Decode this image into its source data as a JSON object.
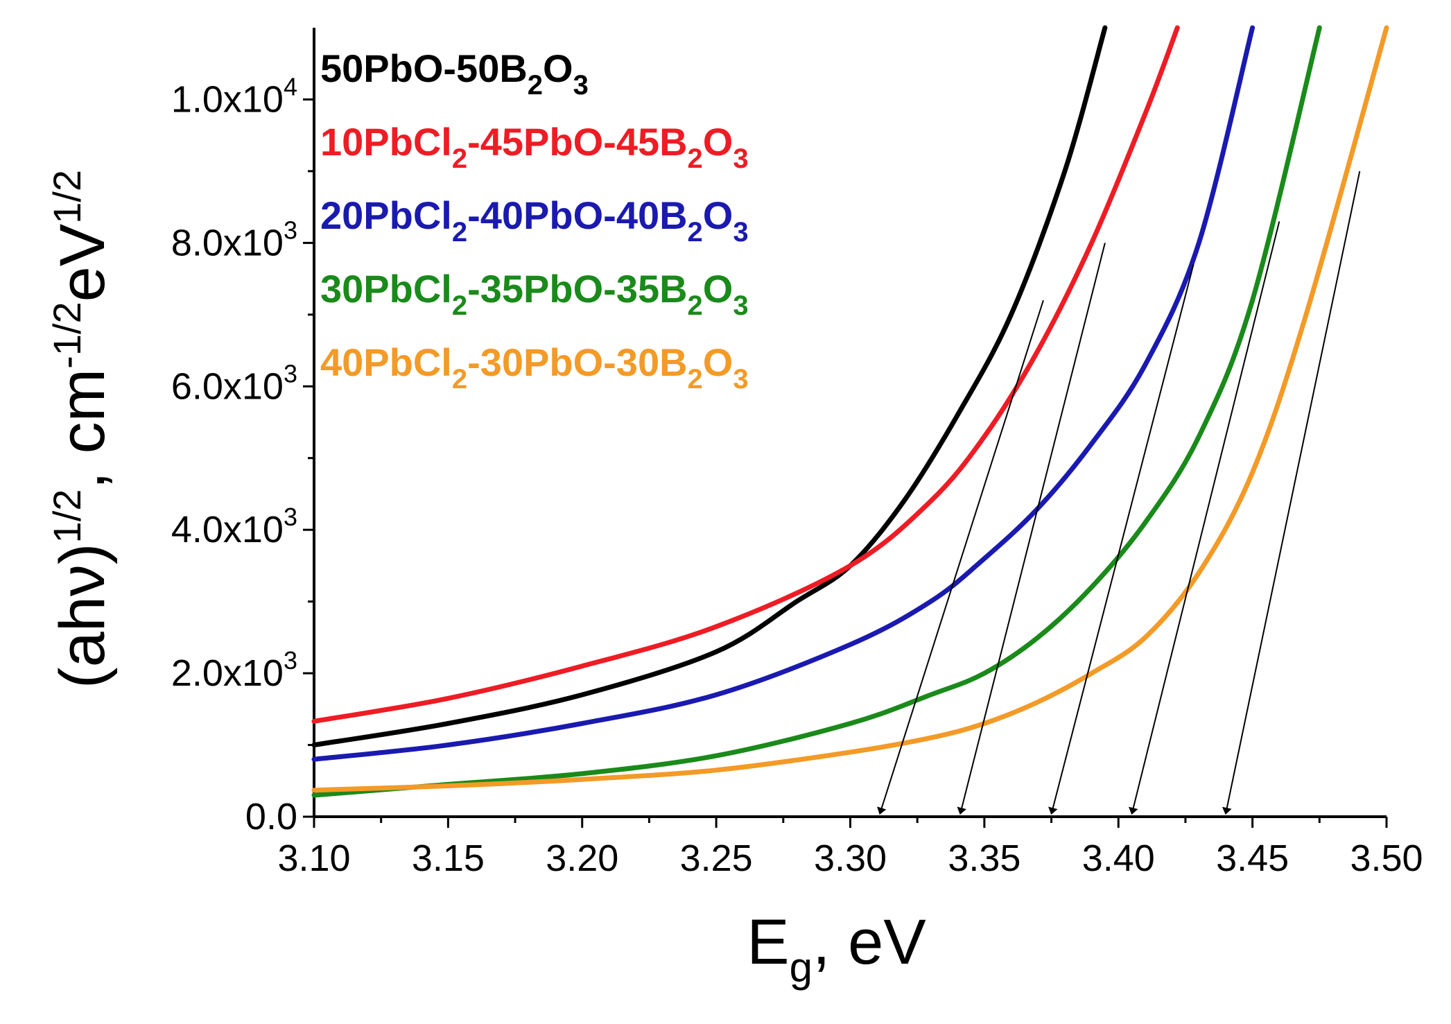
{
  "chart_data": {
    "type": "line",
    "title": "",
    "xlabel": "E_g, eV",
    "xlabel_main": "E",
    "xlabel_sub": "g",
    "xlabel_rest": ", eV",
    "ylabel": "(ahν)^1/2, cm^-1/2 eV^1/2",
    "ylabel_main": "(ahν)",
    "ylabel_sup1": "1/2",
    "ylabel_cm": ", cm",
    "ylabel_sup2": "-1/2",
    "ylabel_ev": "eV",
    "ylabel_sup3": "1/2",
    "xlim": [
      3.1,
      3.5
    ],
    "ylim": [
      0,
      11000
    ],
    "x_ticks": [
      "3.10",
      "3.15",
      "3.20",
      "3.25",
      "3.30",
      "3.35",
      "3.40",
      "3.45",
      "3.50"
    ],
    "y_ticks": [
      {
        "value": 0,
        "base": "0.0",
        "exp": ""
      },
      {
        "value": 2000,
        "base": "2.0x10",
        "exp": "3"
      },
      {
        "value": 4000,
        "base": "4.0x10",
        "exp": "3"
      },
      {
        "value": 6000,
        "base": "6.0x10",
        "exp": "3"
      },
      {
        "value": 8000,
        "base": "8.0x10",
        "exp": "3"
      },
      {
        "value": 10000,
        "base": "1.0x10",
        "exp": "4"
      }
    ],
    "grid": false,
    "legend_position": "top-left",
    "series": [
      {
        "name": "50PbO-50B2O3",
        "label_parts": [
          [
            "50PbO-50B",
            ""
          ],
          [
            "2",
            "sub"
          ],
          [
            "O",
            ""
          ],
          [
            "3",
            "sub"
          ]
        ],
        "color": "#000000",
        "x": [
          3.1,
          3.15,
          3.2,
          3.25,
          3.28,
          3.3,
          3.32,
          3.34,
          3.36,
          3.38,
          3.395
        ],
        "y": [
          1000,
          1300,
          1700,
          2300,
          3000,
          3500,
          4400,
          5600,
          7000,
          9000,
          11000
        ]
      },
      {
        "name": "10PbCl2-45PbO-45B2O3",
        "label_parts": [
          [
            "10PbCl",
            ""
          ],
          [
            "2",
            "sub"
          ],
          [
            "-45PbO-45B",
            ""
          ],
          [
            "2",
            "sub"
          ],
          [
            "O",
            ""
          ],
          [
            "3",
            "sub"
          ]
        ],
        "color": "#ee1c24",
        "x": [
          3.1,
          3.15,
          3.2,
          3.25,
          3.3,
          3.33,
          3.35,
          3.37,
          3.39,
          3.41,
          3.422
        ],
        "y": [
          1330,
          1650,
          2100,
          2650,
          3500,
          4400,
          5300,
          6500,
          8000,
          9800,
          11000
        ]
      },
      {
        "name": "20PbCl2-40PbO-40B2O3",
        "label_parts": [
          [
            "20PbCl",
            ""
          ],
          [
            "2",
            "sub"
          ],
          [
            "-40PbO-40B",
            ""
          ],
          [
            "2",
            "sub"
          ],
          [
            "O",
            ""
          ],
          [
            "3",
            "sub"
          ]
        ],
        "color": "#1a1ab0",
        "x": [
          3.1,
          3.15,
          3.2,
          3.25,
          3.3,
          3.33,
          3.35,
          3.37,
          3.39,
          3.41,
          3.43,
          3.45
        ],
        "y": [
          800,
          1000,
          1300,
          1700,
          2400,
          3000,
          3600,
          4300,
          5200,
          6300,
          8000,
          11000
        ]
      },
      {
        "name": "30PbCl2-35PbO-35B2O3",
        "label_parts": [
          [
            "30PbCl",
            ""
          ],
          [
            "2",
            "sub"
          ],
          [
            "-35PbO-35B",
            ""
          ],
          [
            "2",
            "sub"
          ],
          [
            "O",
            ""
          ],
          [
            "3",
            "sub"
          ]
        ],
        "color": "#1a8a1a",
        "x": [
          3.1,
          3.15,
          3.2,
          3.25,
          3.3,
          3.33,
          3.35,
          3.37,
          3.39,
          3.41,
          3.43,
          3.45,
          3.475
        ],
        "y": [
          300,
          450,
          600,
          850,
          1300,
          1700,
          2000,
          2500,
          3200,
          4100,
          5300,
          7200,
          11000
        ]
      },
      {
        "name": "40PbCl2-30PbO-30B2O3",
        "label_parts": [
          [
            "40PbCl",
            ""
          ],
          [
            "2",
            "sub"
          ],
          [
            "-30PbO-30B",
            ""
          ],
          [
            "2",
            "sub"
          ],
          [
            "O",
            ""
          ],
          [
            "3",
            "sub"
          ]
        ],
        "color": "#f39a27",
        "x": [
          3.1,
          3.15,
          3.2,
          3.25,
          3.3,
          3.33,
          3.35,
          3.37,
          3.39,
          3.41,
          3.43,
          3.45,
          3.47,
          3.5
        ],
        "y": [
          370,
          430,
          520,
          650,
          900,
          1100,
          1300,
          1600,
          2000,
          2500,
          3400,
          4800,
          7000,
          11000
        ]
      }
    ],
    "annotations": [
      {
        "type": "arrow",
        "x_from": 3.372,
        "y_from": 7200,
        "x_to": 3.311,
        "y_to": 0
      },
      {
        "type": "arrow",
        "x_from": 3.395,
        "y_from": 8000,
        "x_to": 3.341,
        "y_to": 0
      },
      {
        "type": "arrow",
        "x_from": 3.428,
        "y_from": 7700,
        "x_to": 3.375,
        "y_to": 0
      },
      {
        "type": "arrow",
        "x_from": 3.46,
        "y_from": 8300,
        "x_to": 3.405,
        "y_to": 0
      },
      {
        "type": "arrow",
        "x_from": 3.49,
        "y_from": 9000,
        "x_to": 3.44,
        "y_to": 0
      }
    ]
  }
}
